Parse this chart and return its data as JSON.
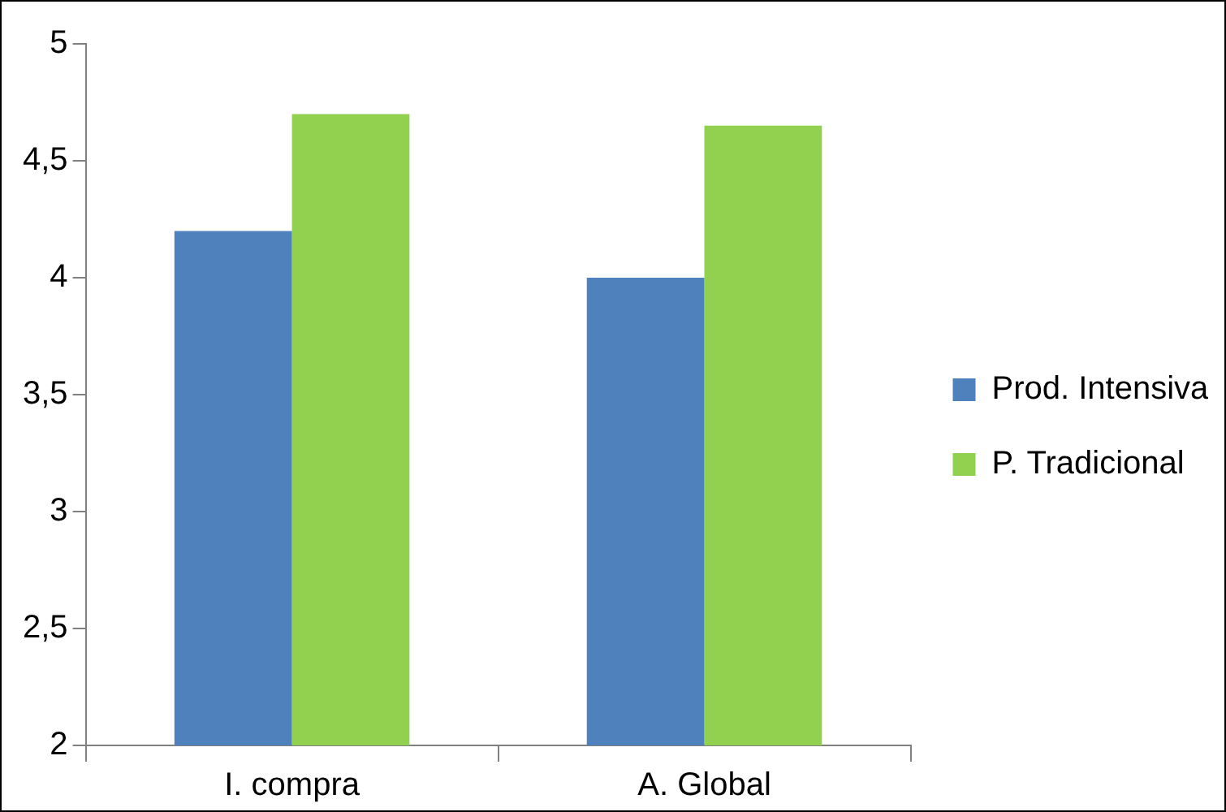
{
  "chart_data": {
    "type": "bar",
    "categories": [
      "I. compra",
      "A. Global"
    ],
    "series": [
      {
        "name": "Prod. Intensiva",
        "color": "#4f81bd",
        "values": [
          4.2,
          4.0
        ]
      },
      {
        "name": "P. Tradicional",
        "color": "#92d050",
        "values": [
          4.7,
          4.65
        ]
      }
    ],
    "ylim": [
      2,
      5
    ],
    "yticks": [
      2,
      {
        "value": 2.5,
        "label": "2,5"
      },
      3,
      {
        "value": 3.5,
        "label": "3,5"
      },
      4,
      {
        "value": 4.5,
        "label": "4,5"
      },
      5
    ],
    "legend": "right"
  }
}
